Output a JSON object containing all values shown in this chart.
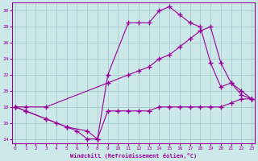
{
  "xlabel": "Windchill (Refroidissement éolien,°C)",
  "bg_color": "#cde8e8",
  "grid_color": "#a0c8c8",
  "line_color": "#990099",
  "xlim": [
    -0.3,
    23.3
  ],
  "ylim": [
    13.5,
    31
  ],
  "yticks": [
    14,
    16,
    18,
    20,
    22,
    24,
    26,
    28,
    30
  ],
  "xticks": [
    0,
    1,
    2,
    3,
    4,
    5,
    6,
    7,
    8,
    9,
    10,
    11,
    12,
    13,
    14,
    15,
    16,
    17,
    18,
    19,
    20,
    21,
    22,
    23
  ],
  "series": [
    {
      "x": [
        0,
        1,
        3,
        4,
        5,
        6,
        7,
        8,
        9,
        10,
        11,
        12,
        13,
        14,
        15,
        16,
        17,
        18,
        19,
        20,
        21,
        22,
        23
      ],
      "y": [
        18,
        17.5,
        16.5,
        16,
        15.5,
        15,
        14,
        14,
        17.5,
        17.5,
        17.5,
        17.5,
        17.5,
        18,
        18,
        18,
        18,
        18,
        18,
        18,
        18.5,
        19,
        19
      ]
    },
    {
      "x": [
        0,
        1,
        3,
        5,
        7,
        8,
        9,
        11,
        12,
        13,
        14,
        15,
        16,
        17,
        18,
        19,
        20,
        21,
        22,
        23
      ],
      "y": [
        18,
        17.5,
        16.5,
        15.5,
        15,
        14,
        22,
        28.5,
        28.5,
        28.5,
        30,
        30.5,
        29.5,
        28.5,
        28,
        23.5,
        20.5,
        21,
        19.5,
        19
      ]
    },
    {
      "x": [
        0,
        1,
        3,
        9,
        11,
        12,
        13,
        14,
        15,
        16,
        17,
        18,
        19,
        20,
        21,
        22,
        23
      ],
      "y": [
        18,
        18,
        18,
        21,
        22,
        22.5,
        23,
        24,
        24.5,
        25.5,
        26.5,
        27.5,
        28,
        23.5,
        21,
        20,
        19
      ]
    }
  ]
}
